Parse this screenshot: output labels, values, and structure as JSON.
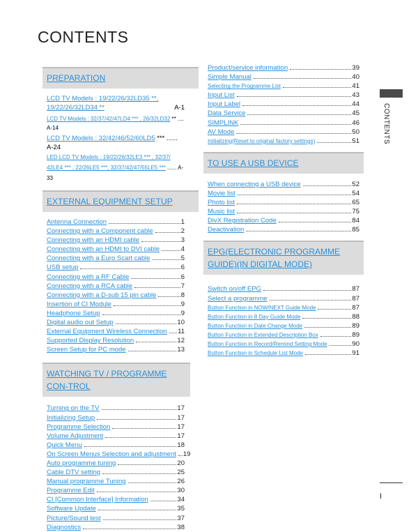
{
  "title": "CONTENTS",
  "side_tab": "CONTENTS",
  "page_number": "I",
  "left": {
    "preparation": {
      "header": "PREPARATION",
      "items": [
        {
          "label": "LCD TV Models : 19/22/26/32LD35 **, 19/22/26/32LD34 **",
          "page": "A-1"
        },
        {
          "label": "LCD TV Models : 32/37/42/47LD4 *** , 26/32LD32",
          "suffix": "**",
          "page": "A-14"
        },
        {
          "label": "LCD TV Models : 32/42/46/52/60LD5",
          "suffix": "***",
          "page": "A-24"
        },
        {
          "label": "LED LCD TV Models : 19/22/26/32LE3 *** , 32/37/ 42LE4 *** , 22/26LE5 ***, 32/37/42/47/55LE5 ***",
          "page": "A-33"
        }
      ]
    },
    "external": {
      "header": "EXTERNAL EQUIPMENT SETUP",
      "items": [
        {
          "label": "Antenna Connection",
          "page": "1"
        },
        {
          "label": "Connecting with a Component cable",
          "page": "2"
        },
        {
          "label": "Connecting with an HDMI cable",
          "page": "3"
        },
        {
          "label": "Connecting with an HDMI to DVI cable",
          "page": "4"
        },
        {
          "label": "Connecting with a Euro Scart cable",
          "page": "5"
        },
        {
          "label": "USB setup",
          "page": "6"
        },
        {
          "label": "Connecting with a RF Cable",
          "page": "6"
        },
        {
          "label": "Connecting with a RCA cable",
          "page": "7"
        },
        {
          "label": "Connecting with a D-sub 15 pin cable",
          "page": "8"
        },
        {
          "label": "Insertion of CI Module",
          "page": "9"
        },
        {
          "label": "Headphone Setup",
          "page": "9"
        },
        {
          "label": "Digital audio out Setup",
          "page": "10"
        },
        {
          "label": "External Equipment Wireless Connection",
          "page": "11"
        },
        {
          "label": "Supported Display Resolution",
          "page": "12"
        },
        {
          "label": "Screen Setup for PC mode",
          "page": "13"
        }
      ]
    },
    "watching": {
      "header": "WATCHING TV / PROGRAMME CON-TROL",
      "items": [
        {
          "label": "Turning on the TV",
          "page": "17"
        },
        {
          "label": "Initializing Setup",
          "page": "17"
        },
        {
          "label": "Programme Selection",
          "page": "17"
        },
        {
          "label": "Volume Adjustment",
          "page": "17"
        },
        {
          "label": "Quick Menu",
          "page": "18"
        },
        {
          "label": "On Screen Menus Selection and adjustment",
          "page": "19"
        },
        {
          "label": "Auto programme tuning",
          "page": "20"
        },
        {
          "label": "Cable DTV setting",
          "page": "25"
        },
        {
          "label": "Manual programme Tuning",
          "page": "26"
        },
        {
          "label": "Programme Edit",
          "page": "30"
        },
        {
          "label": "CI [Common Interface] Information",
          "page": "34"
        },
        {
          "label": "Software Update",
          "page": "35"
        },
        {
          "label": "Picture/Sound test",
          "page": "37"
        },
        {
          "label": "Diagnostics",
          "page": "38"
        }
      ]
    }
  },
  "right": {
    "continued": {
      "items": [
        {
          "label": "Product/service information",
          "page": "39"
        },
        {
          "label": "Simple Manual",
          "page": "40"
        },
        {
          "label": "Selecting the Programme List",
          "page": "41"
        },
        {
          "label": "Input List",
          "page": "43"
        },
        {
          "label": "Input Label",
          "page": "44"
        },
        {
          "label": "Data Service",
          "page": "45"
        },
        {
          "label": "SIMPLINK",
          "page": "46"
        },
        {
          "label": "AV Mode",
          "page": "50"
        },
        {
          "label": "Initializing(Reset to original factory settings)",
          "page": "51"
        }
      ]
    },
    "usb": {
      "header": "TO USE A USB DEVICE",
      "items": [
        {
          "label": "When connecting a USB device",
          "page": "52"
        },
        {
          "label": "Movie list",
          "page": "54"
        },
        {
          "label": "Photo list",
          "page": "65"
        },
        {
          "label": "Music list",
          "page": "75"
        },
        {
          "label": "DivX Registration Code",
          "page": "84"
        },
        {
          "label": "Deactivation",
          "page": "85"
        }
      ]
    },
    "epg": {
      "header": "EPG(ELECTRONIC PROGRAMME GUIDE)(IN DIGITAL MODE)",
      "items": [
        {
          "label": "Switch on/off EPG",
          "page": "87"
        },
        {
          "label": "Select a programme",
          "page": "87"
        },
        {
          "label": "Button Function in NOW/NEXT Guide Mode",
          "page": "87"
        },
        {
          "label": "Button Function in 8 Day Guide Mode",
          "page": "88"
        },
        {
          "label": "Button Function in Date Change Mode",
          "page": "89"
        },
        {
          "label": "Button Function in Extended Description Box",
          "page": "89"
        },
        {
          "label": "Button Function in Record/Remind Setting Mode",
          "page": "90"
        },
        {
          "label": "Button Function in Schedule List Mode",
          "page": "91"
        }
      ]
    }
  }
}
